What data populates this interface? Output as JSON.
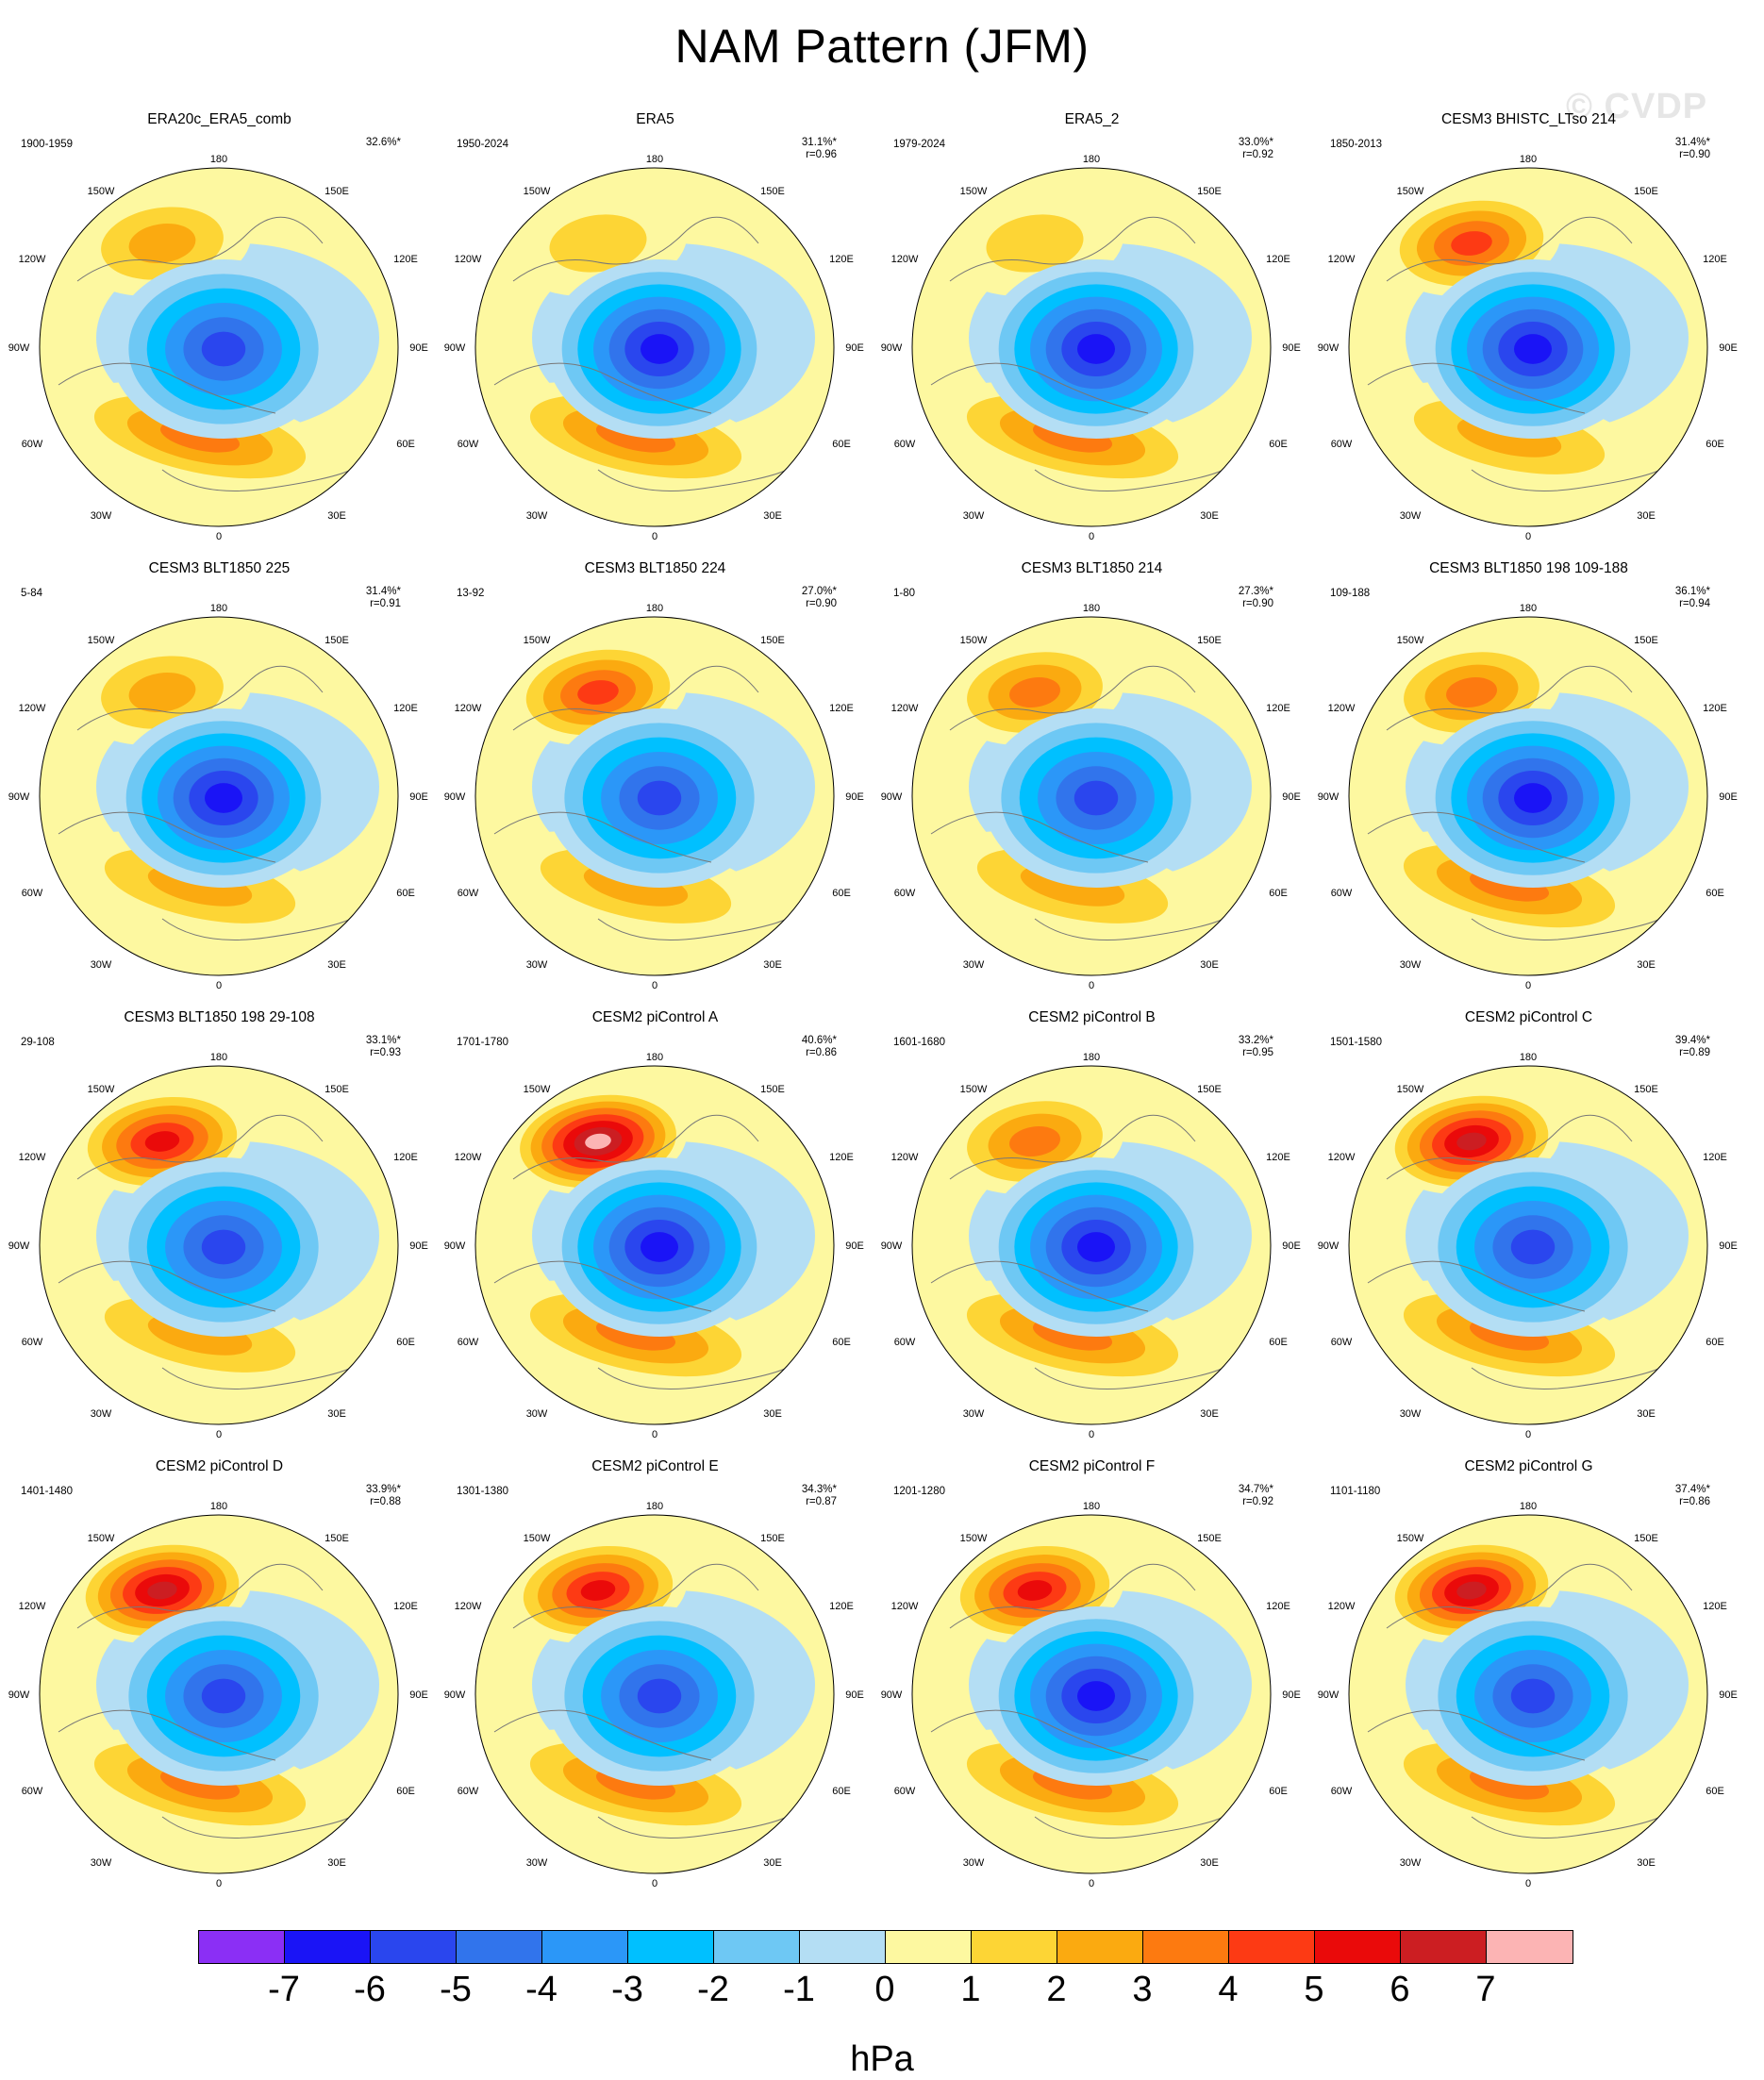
{
  "figure": {
    "title": "NAM Pattern (JFM)",
    "watermark": "© CVDP",
    "units": "hPa"
  },
  "colorbar": {
    "colors": [
      "#8b2ff5",
      "#1a14f6",
      "#2a46ee",
      "#3174ec",
      "#2b97f8",
      "#00c0ff",
      "#6ec8f4",
      "#b4def4",
      "#fdf8a0",
      "#fdd535",
      "#fbaa10",
      "#fd7a10",
      "#fd3a14",
      "#ea0a0a",
      "#cc1e22",
      "#fcb4b4"
    ],
    "tick_labels": [
      "-7",
      "-6",
      "-5",
      "-4",
      "-3",
      "-2",
      "-1",
      "0",
      "1",
      "2",
      "3",
      "4",
      "5",
      "6",
      "7"
    ]
  },
  "grid_labels": {
    "top": "180",
    "bottom": "0",
    "upper_left": "150W",
    "upper_right": "150E",
    "mid_upper_left": "120W",
    "mid_upper_right": "120E",
    "left": "90W",
    "right": "90E",
    "mid_lower_left": "60W",
    "mid_lower_right": "60E",
    "lower_left": "30W",
    "lower_right": "30E"
  },
  "panels": [
    {
      "title": "ERA20c_ERA5_comb",
      "years": "1900-1959",
      "pct": "32.6%*",
      "r": "",
      "pos_center": 2.5,
      "pos_atlantic": 3.0,
      "pos_south": 0,
      "neg_min": -5.5
    },
    {
      "title": "ERA5",
      "years": "1950-2024",
      "pct": "31.1%*",
      "r": "r=0.96",
      "pos_center": 1.5,
      "pos_atlantic": 3.0,
      "pos_south": 0,
      "neg_min": -6.0
    },
    {
      "title": "ERA5_2",
      "years": "1979-2024",
      "pct": "33.0%*",
      "r": "r=0.92",
      "pos_center": 1.5,
      "pos_atlantic": 3.0,
      "pos_south": 0,
      "neg_min": -6.0
    },
    {
      "title": "CESM3 BHISTC_LTso 214",
      "years": "1850-2013",
      "pct": "31.4%*",
      "r": "r=0.90",
      "pos_center": 4.5,
      "pos_atlantic": 2.5,
      "pos_south": 0,
      "neg_min": -6.0
    },
    {
      "title": "CESM3 BLT1850 225",
      "years": "5-84",
      "pct": "31.4%*",
      "r": "r=0.91",
      "pos_center": 2.5,
      "pos_atlantic": 2.5,
      "pos_south": 0,
      "neg_min": -6.5
    },
    {
      "title": "CESM3 BLT1850 224",
      "years": "13-92",
      "pct": "27.0%*",
      "r": "r=0.90",
      "pos_center": 4.5,
      "pos_atlantic": 2.0,
      "pos_south": 0,
      "neg_min": -5.0
    },
    {
      "title": "CESM3 BLT1850 214",
      "years": "1-80",
      "pct": "27.3%*",
      "r": "r=0.90",
      "pos_center": 3.5,
      "pos_atlantic": 2.5,
      "pos_south": 0,
      "neg_min": -5.0
    },
    {
      "title": "CESM3 BLT1850 198 109-188",
      "years": "109-188",
      "pct": "36.1%*",
      "r": "r=0.94",
      "pos_center": 3.5,
      "pos_atlantic": 3.5,
      "pos_south": 0,
      "neg_min": -6.0
    },
    {
      "title": "CESM3 BLT1850 198 29-108",
      "years": "29-108",
      "pct": "33.1%*",
      "r": "r=0.93",
      "pos_center": 5.0,
      "pos_atlantic": 2.5,
      "pos_south": 0,
      "neg_min": -5.5
    },
    {
      "title": "CESM2 piControl A",
      "years": "1701-1780",
      "pct": "40.6%*",
      "r": "r=0.86",
      "pos_center": 7.5,
      "pos_atlantic": 3.5,
      "pos_south": 0,
      "neg_min": -6.0
    },
    {
      "title": "CESM2 piControl B",
      "years": "1601-1680",
      "pct": "33.2%*",
      "r": "r=0.95",
      "pos_center": 3.5,
      "pos_atlantic": 3.0,
      "pos_south": 0,
      "neg_min": -6.0
    },
    {
      "title": "CESM2 piControl C",
      "years": "1501-1580",
      "pct": "39.4%*",
      "r": "r=0.89",
      "pos_center": 6.0,
      "pos_atlantic": 3.0,
      "pos_south": 0,
      "neg_min": -5.5
    },
    {
      "title": "CESM2 piControl D",
      "years": "1401-1480",
      "pct": "33.9%*",
      "r": "r=0.88",
      "pos_center": 6.0,
      "pos_atlantic": 3.5,
      "pos_south": 0,
      "neg_min": -5.5
    },
    {
      "title": "CESM2 piControl E",
      "years": "1301-1380",
      "pct": "34.3%*",
      "r": "r=0.87",
      "pos_center": 5.0,
      "pos_atlantic": 3.0,
      "pos_south": 0,
      "neg_min": -5.5
    },
    {
      "title": "CESM2 piControl F",
      "years": "1201-1280",
      "pct": "34.7%*",
      "r": "r=0.92",
      "pos_center": 5.5,
      "pos_atlantic": 3.5,
      "pos_south": 0,
      "neg_min": -6.5
    },
    {
      "title": "CESM2 piControl G",
      "years": "1101-1180",
      "pct": "37.4%*",
      "r": "r=0.86",
      "pos_center": 6.5,
      "pos_atlantic": 3.0,
      "pos_south": 0,
      "neg_min": -5.5
    }
  ]
}
